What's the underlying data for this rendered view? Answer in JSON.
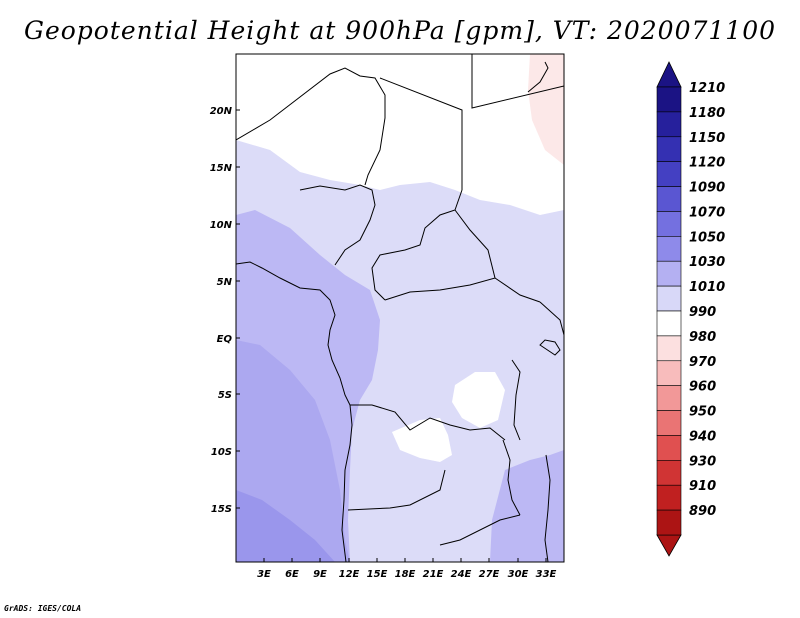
{
  "title": "Geopotential Height at 900hPa [gpm], VT: 2020071100",
  "footer": "GrADS: IGES/COLA",
  "map": {
    "variable": "Geopotential Height",
    "level": "900hPa",
    "units": "gpm",
    "valid_time": "2020071100",
    "lat_labels": [
      "20N",
      "15N",
      "10N",
      "5N",
      "EQ",
      "5S",
      "10S",
      "15S"
    ],
    "lon_labels": [
      "3E",
      "6E",
      "9E",
      "12E",
      "15E",
      "18E",
      "21E",
      "24E",
      "27E",
      "30E",
      "33E"
    ]
  },
  "colorbar": {
    "levels": [
      "1210",
      "1180",
      "1150",
      "1120",
      "1090",
      "1070",
      "1050",
      "1030",
      "1010",
      "990",
      "980",
      "970",
      "960",
      "950",
      "940",
      "930",
      "910",
      "890"
    ],
    "colors": [
      "#1b1384",
      "#26209c",
      "#3430b2",
      "#4440c2",
      "#5a56d2",
      "#7470e0",
      "#8e8aea",
      "#b4b0f2",
      "#d8d8f8",
      "#ffffff",
      "#fce0e0",
      "#f8bcbc",
      "#f29898",
      "#ea7474",
      "#e05050",
      "#d03434",
      "#c02020",
      "#ac1414"
    ]
  },
  "icons": {
    "colorbar_top": "triangle-up-icon",
    "colorbar_bottom": "triangle-down-icon"
  }
}
